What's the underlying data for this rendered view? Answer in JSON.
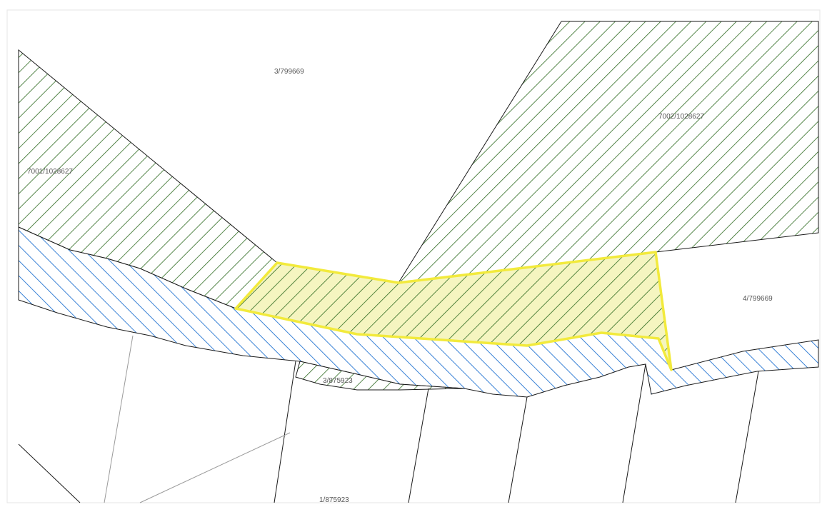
{
  "map": {
    "parcels": [
      {
        "id": "3/799669"
      },
      {
        "id": "7002/1028627"
      },
      {
        "id": "7001/1028627"
      },
      {
        "id": "4/799669"
      },
      {
        "id": "3/875923"
      },
      {
        "id": "1/875923"
      }
    ],
    "colors": {
      "green_hatch": "#2d6a1f",
      "blue_hatch": "#3a82d6",
      "highlight_outline": "#f2ea3c",
      "highlight_fill": "#f5f5c0",
      "boundary": "#1a1a1a"
    }
  }
}
